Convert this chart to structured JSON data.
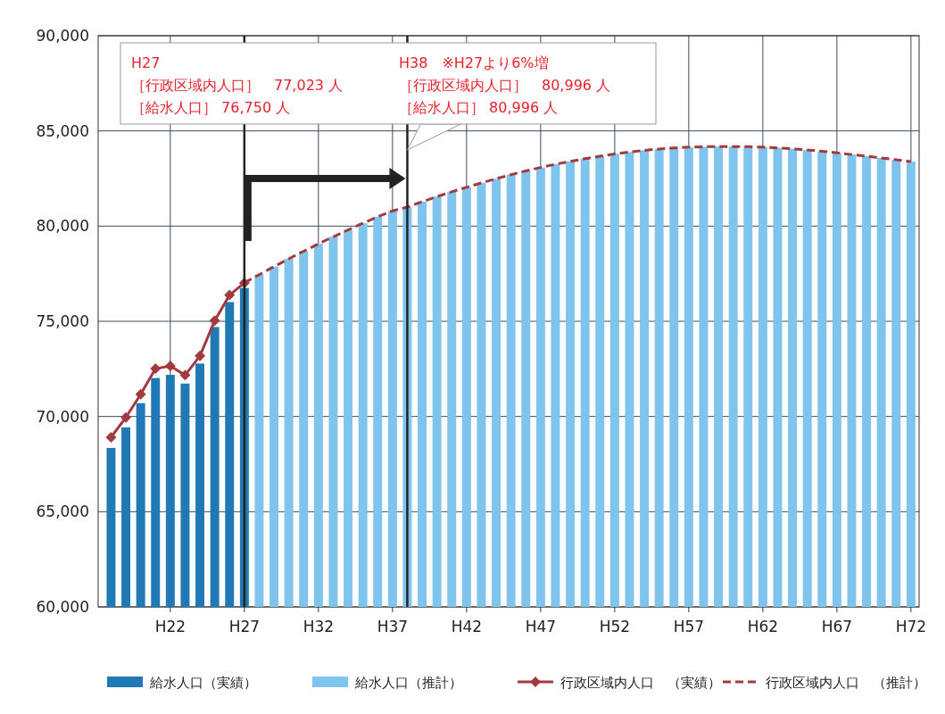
{
  "chart_data": {
    "type": "bar",
    "categories": [
      null,
      null,
      null,
      null,
      "H22",
      null,
      null,
      null,
      null,
      "H27",
      null,
      null,
      null,
      null,
      "H32",
      null,
      null,
      null,
      null,
      "H37",
      null,
      null,
      null,
      null,
      "H42",
      null,
      null,
      null,
      null,
      "H47",
      null,
      null,
      null,
      null,
      "H52",
      null,
      null,
      null,
      null,
      "H57",
      null,
      null,
      null,
      null,
      "H62",
      null,
      null,
      null,
      null,
      "H67",
      null,
      null,
      null,
      null,
      "H72"
    ],
    "ylim": [
      60000,
      90000
    ],
    "yticks": [
      {
        "value": 60000,
        "label": "60,000"
      },
      {
        "value": 65000,
        "label": "65,000"
      },
      {
        "value": 70000,
        "label": "70,000"
      },
      {
        "value": 75000,
        "label": "75,000"
      },
      {
        "value": 80000,
        "label": "80,000"
      },
      {
        "value": 85000,
        "label": "85,000"
      },
      {
        "value": 90000,
        "label": "90,000"
      }
    ],
    "grid": true,
    "legend": "bottom",
    "series": [
      {
        "name": "給水人口（実績）",
        "color": "#2079b4",
        "values": [
          68350,
          69430,
          70700,
          72020,
          72190,
          71730,
          72780,
          74700,
          76010,
          76750,
          null,
          null,
          null,
          null,
          null,
          null,
          null,
          null,
          null,
          null,
          null,
          null,
          null,
          null,
          null,
          null,
          null,
          null,
          null,
          null,
          null,
          null,
          null,
          null,
          null,
          null,
          null,
          null,
          null,
          null,
          null,
          null,
          null,
          null,
          null,
          null,
          null,
          null,
          null,
          null,
          null,
          null,
          null,
          null,
          null
        ]
      },
      {
        "name": "給水人口（推計）",
        "color": "#7ec4ec",
        "values": [
          null,
          null,
          null,
          null,
          null,
          null,
          null,
          null,
          null,
          null,
          77450,
          77870,
          78280,
          78680,
          79070,
          79440,
          79800,
          80150,
          80490,
          80800,
          81000,
          81280,
          81550,
          81800,
          82040,
          82270,
          82490,
          82700,
          82900,
          83080,
          83250,
          83400,
          83540,
          83670,
          83790,
          83890,
          83980,
          84050,
          84110,
          84150,
          84170,
          84180,
          84180,
          84170,
          84150,
          84110,
          84060,
          84000,
          83930,
          83850,
          83760,
          83670,
          83580,
          83480,
          83390
        ]
      },
      {
        "name": "行政区域内人口　（実績）",
        "type": "line",
        "color": "#a33a3f",
        "marker": "diamond",
        "line_style": "solid",
        "values": [
          68910,
          69950,
          71170,
          72510,
          72660,
          72170,
          73180,
          75040,
          76380,
          77020,
          null,
          null,
          null,
          null,
          null,
          null,
          null,
          null,
          null,
          null,
          null,
          null,
          null,
          null,
          null,
          null,
          null,
          null,
          null,
          null,
          null,
          null,
          null,
          null,
          null,
          null,
          null,
          null,
          null,
          null,
          null,
          null,
          null,
          null,
          null,
          null,
          null,
          null,
          null,
          null,
          null,
          null,
          null,
          null,
          null
        ]
      },
      {
        "name": "行政区域内人口　（推計）",
        "type": "line",
        "color": "#a33a3f",
        "marker": "none",
        "line_style": "dashed",
        "values": [
          null,
          null,
          null,
          null,
          null,
          null,
          null,
          null,
          null,
          77020,
          77450,
          77870,
          78280,
          78680,
          79070,
          79440,
          79800,
          80150,
          80490,
          80800,
          81000,
          81280,
          81550,
          81800,
          82040,
          82270,
          82490,
          82700,
          82900,
          83080,
          83250,
          83400,
          83540,
          83670,
          83790,
          83890,
          83980,
          84050,
          84110,
          84150,
          84170,
          84180,
          84180,
          84170,
          84150,
          84110,
          84060,
          84000,
          83930,
          83850,
          83760,
          83670,
          83580,
          83480,
          83390
        ]
      }
    ],
    "ref_lines": [
      {
        "axis": "x",
        "value": "H27",
        "color": "#222222"
      }
    ],
    "annotations": [
      "H27",
      "［行政区域内人口］　77,023 人",
      "［給水人口］ 76,750 人",
      "H38　※H27より6%増",
      "［行政区域内人口］　80,996 人",
      "［給水人口］ 80,996 人"
    ]
  }
}
